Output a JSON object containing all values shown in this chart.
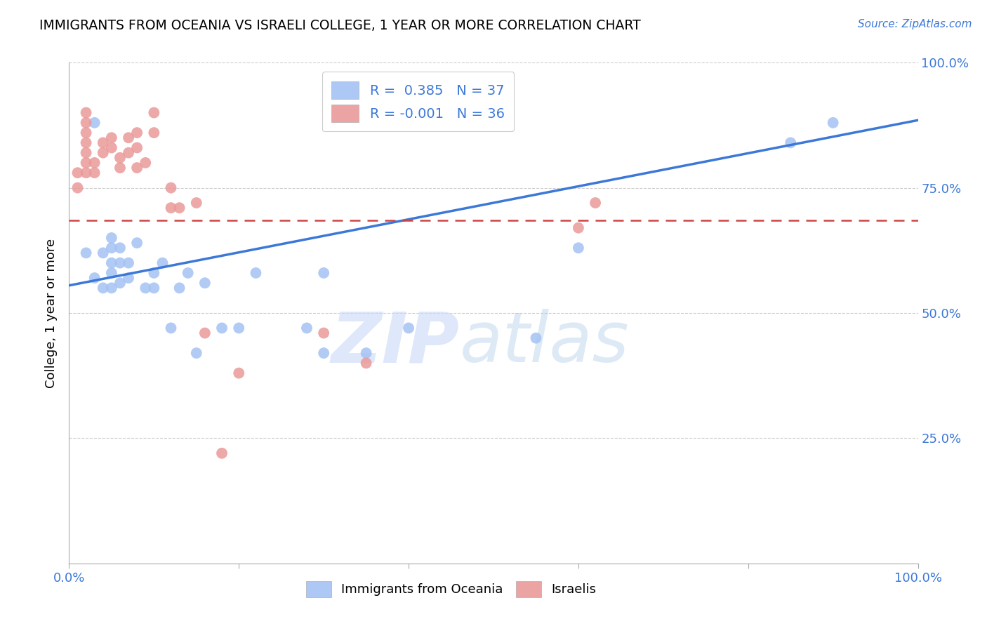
{
  "title": "IMMIGRANTS FROM OCEANIA VS ISRAELI COLLEGE, 1 YEAR OR MORE CORRELATION CHART",
  "source_text": "Source: ZipAtlas.com",
  "ylabel": "College, 1 year or more",
  "xlim": [
    0.0,
    1.0
  ],
  "ylim": [
    0.0,
    1.0
  ],
  "ytick_positions": [
    0.25,
    0.5,
    0.75,
    1.0
  ],
  "ytick_labels": [
    "25.0%",
    "50.0%",
    "75.0%",
    "100.0%"
  ],
  "legend_x_label": "Immigrants from Oceania",
  "legend_pink_label": "Israelis",
  "R_blue": 0.385,
  "N_blue": 37,
  "R_pink": -0.001,
  "N_pink": 36,
  "blue_color": "#a4c2f4",
  "pink_color": "#ea9999",
  "blue_line_color": "#3c78d8",
  "pink_line_color": "#cc4444",
  "blue_scatter_x": [
    0.02,
    0.03,
    0.04,
    0.05,
    0.05,
    0.05,
    0.05,
    0.05,
    0.06,
    0.06,
    0.07,
    0.07,
    0.08,
    0.09,
    0.1,
    0.1,
    0.11,
    0.12,
    0.13,
    0.14,
    0.15,
    0.16,
    0.18,
    0.2,
    0.22,
    0.28,
    0.3,
    0.3,
    0.35,
    0.4,
    0.55,
    0.6,
    0.85,
    0.9,
    0.03,
    0.04,
    0.06
  ],
  "blue_scatter_y": [
    0.62,
    0.88,
    0.62,
    0.6,
    0.63,
    0.65,
    0.55,
    0.58,
    0.6,
    0.63,
    0.57,
    0.6,
    0.64,
    0.55,
    0.55,
    0.58,
    0.6,
    0.47,
    0.55,
    0.58,
    0.42,
    0.56,
    0.47,
    0.47,
    0.58,
    0.47,
    0.42,
    0.58,
    0.42,
    0.47,
    0.45,
    0.63,
    0.84,
    0.88,
    0.57,
    0.55,
    0.56
  ],
  "pink_scatter_x": [
    0.01,
    0.01,
    0.02,
    0.02,
    0.02,
    0.02,
    0.02,
    0.02,
    0.02,
    0.03,
    0.03,
    0.04,
    0.04,
    0.05,
    0.05,
    0.06,
    0.06,
    0.07,
    0.07,
    0.08,
    0.08,
    0.08,
    0.09,
    0.1,
    0.1,
    0.12,
    0.12,
    0.13,
    0.15,
    0.16,
    0.18,
    0.2,
    0.3,
    0.35,
    0.6,
    0.62
  ],
  "pink_scatter_y": [
    0.75,
    0.78,
    0.78,
    0.8,
    0.82,
    0.84,
    0.86,
    0.88,
    0.9,
    0.78,
    0.8,
    0.82,
    0.84,
    0.83,
    0.85,
    0.79,
    0.81,
    0.82,
    0.85,
    0.79,
    0.83,
    0.86,
    0.8,
    0.86,
    0.9,
    0.71,
    0.75,
    0.71,
    0.72,
    0.46,
    0.22,
    0.38,
    0.46,
    0.4,
    0.67,
    0.72
  ],
  "blue_line_x": [
    0.0,
    1.0
  ],
  "blue_line_y_start": 0.555,
  "blue_line_y_end": 0.885,
  "pink_line_x": [
    0.0,
    1.0
  ],
  "pink_line_y": 0.685
}
